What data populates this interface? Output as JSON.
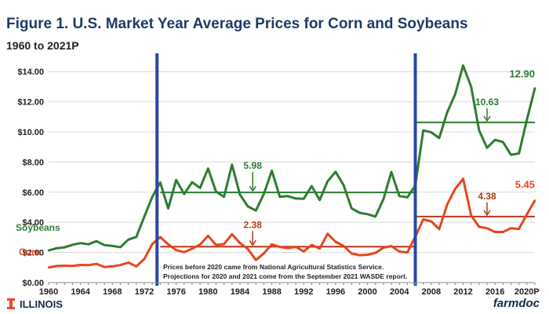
{
  "title": "Figure 1. U.S. Market Year Average Prices for Corn and Soybeans",
  "subtitle": "1960 to 2021P",
  "footer": {
    "brand_left": "ILLINOIS",
    "brand_right": "farmdoc"
  },
  "colors": {
    "soybeans": "#2e7d32",
    "corn": "#e8451e",
    "vline": "#2947a3",
    "grid": "#d9d9d9",
    "avg_soy": "#2e7d32",
    "avg_corn": "#b33a1c"
  },
  "chart_data": {
    "type": "line",
    "title": "Figure 1. U.S. Market Year Average Prices for Corn and Soybeans",
    "subtitle": "1960 to 2021P",
    "xlabel": "",
    "ylabel": "",
    "xlim": [
      1960,
      2021
    ],
    "ylim": [
      0,
      15
    ],
    "yticks": [
      0,
      2,
      4,
      6,
      8,
      10,
      12,
      14
    ],
    "ytick_labels": [
      "$0.00",
      "$2.00",
      "$4.00",
      "$6.00",
      "$8.00",
      "$10.00",
      "$12.00",
      "$14.00"
    ],
    "xticks": [
      1960,
      1964,
      1968,
      1972,
      1976,
      1980,
      1984,
      1988,
      1992,
      1996,
      2000,
      2004,
      2008,
      2012,
      2016,
      2020
    ],
    "xtick_labels": [
      "1960",
      "1964",
      "1968",
      "1972",
      "1976",
      "1980",
      "1984",
      "1988",
      "1992",
      "1996",
      "2000",
      "2004",
      "2008",
      "2012",
      "2016",
      "2020P"
    ],
    "grid": true,
    "series": [
      {
        "name": "Soybeans",
        "x": [
          1960,
          1961,
          1962,
          1963,
          1964,
          1965,
          1966,
          1967,
          1968,
          1969,
          1970,
          1971,
          1972,
          1973,
          1974,
          1975,
          1976,
          1977,
          1978,
          1979,
          1980,
          1981,
          1982,
          1983,
          1984,
          1985,
          1986,
          1987,
          1988,
          1989,
          1990,
          1991,
          1992,
          1993,
          1994,
          1995,
          1996,
          1997,
          1998,
          1999,
          2000,
          2001,
          2002,
          2003,
          2004,
          2005,
          2006,
          2007,
          2008,
          2009,
          2010,
          2011,
          2012,
          2013,
          2014,
          2015,
          2016,
          2017,
          2018,
          2019,
          2020,
          2021
        ],
        "values": [
          2.13,
          2.28,
          2.34,
          2.51,
          2.62,
          2.54,
          2.75,
          2.49,
          2.43,
          2.35,
          2.85,
          3.03,
          4.37,
          5.68,
          6.64,
          4.92,
          6.81,
          5.88,
          6.66,
          6.28,
          7.57,
          6.04,
          5.69,
          7.83,
          5.84,
          5.05,
          4.78,
          5.88,
          7.42,
          5.69,
          5.74,
          5.58,
          5.56,
          6.4,
          5.48,
          6.72,
          7.35,
          6.47,
          4.93,
          4.63,
          4.54,
          4.38,
          5.53,
          7.34,
          5.74,
          5.66,
          6.43,
          10.1,
          9.97,
          9.59,
          11.3,
          12.5,
          14.4,
          13.0,
          10.1,
          8.95,
          9.47,
          9.33,
          8.48,
          8.57,
          10.8,
          12.9
        ]
      },
      {
        "name": "Corn",
        "x": [
          1960,
          1961,
          1962,
          1963,
          1964,
          1965,
          1966,
          1967,
          1968,
          1969,
          1970,
          1971,
          1972,
          1973,
          1974,
          1975,
          1976,
          1977,
          1978,
          1979,
          1980,
          1981,
          1982,
          1983,
          1984,
          1985,
          1986,
          1987,
          1988,
          1989,
          1990,
          1991,
          1992,
          1993,
          1994,
          1995,
          1996,
          1997,
          1998,
          1999,
          2000,
          2001,
          2002,
          2003,
          2004,
          2005,
          2006,
          2007,
          2008,
          2009,
          2010,
          2011,
          2012,
          2013,
          2014,
          2015,
          2016,
          2017,
          2018,
          2019,
          2020,
          2021
        ],
        "values": [
          1.0,
          1.1,
          1.12,
          1.11,
          1.17,
          1.16,
          1.24,
          1.03,
          1.08,
          1.16,
          1.33,
          1.08,
          1.57,
          2.55,
          3.02,
          2.54,
          2.15,
          2.02,
          2.25,
          2.52,
          3.11,
          2.5,
          2.55,
          3.21,
          2.63,
          2.23,
          1.5,
          1.94,
          2.54,
          2.36,
          2.28,
          2.37,
          2.07,
          2.5,
          2.26,
          3.24,
          2.71,
          2.43,
          1.94,
          1.82,
          1.85,
          1.97,
          2.32,
          2.42,
          2.06,
          2.0,
          3.04,
          4.2,
          4.06,
          3.55,
          5.18,
          6.22,
          6.89,
          4.46,
          3.7,
          3.61,
          3.36,
          3.36,
          3.61,
          3.56,
          4.53,
          5.45
        ]
      }
    ],
    "legend": [
      {
        "name": "Soybeans",
        "placement": "left, above soybeans line"
      },
      {
        "name": "Corn",
        "placement": "left, below corn line"
      }
    ],
    "period_averages": [
      {
        "series": "Soybeans",
        "from": 1974,
        "to": 2006,
        "value": 5.98,
        "label": "5.98"
      },
      {
        "series": "Corn",
        "from": 1974,
        "to": 2006,
        "value": 2.38,
        "label": "2.38"
      },
      {
        "series": "Soybeans",
        "from": 2006,
        "to": 2021,
        "value": 10.63,
        "label": "10.63"
      },
      {
        "series": "Corn",
        "from": 2006,
        "to": 2021,
        "value": 4.38,
        "label": "4.38"
      }
    ],
    "vertical_lines": [
      1973.6,
      2006.0
    ],
    "end_labels": [
      {
        "series": "Soybeans",
        "label": "12.90"
      },
      {
        "series": "Corn",
        "label": "5.45"
      }
    ],
    "note_lines": [
      "Prices before 2020 came from National Agricultural Statistics  Service.",
      "Projections for 2020 and 2021 come from the September 2021 WASDE report."
    ]
  }
}
